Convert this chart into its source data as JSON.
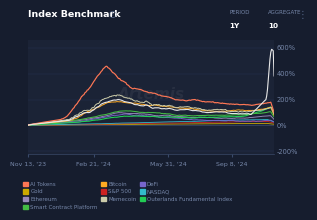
{
  "title": "Index Benchmark",
  "bg_color": "#161d2e",
  "plot_bg_color": "#1b2336",
  "grid_color": "#263050",
  "text_color": "#ffffff",
  "axis_label_color": "#7788aa",
  "x_ticks": [
    "Nov 13, '23",
    "Feb 21, '24",
    "May 31, '24",
    "Sep 8, '24"
  ],
  "y_lim": [
    -220,
    660
  ],
  "legend": [
    {
      "label": "AI Tokens",
      "color": "#ff7755"
    },
    {
      "label": "Gold",
      "color": "#ccaa00"
    },
    {
      "label": "Ethereum",
      "color": "#9988bb"
    },
    {
      "label": "Smart Contract Platform",
      "color": "#44bb44"
    },
    {
      "label": "Bitcoin",
      "color": "#ffaa22"
    },
    {
      "label": "S&P 500",
      "color": "#cc2222"
    },
    {
      "label": "Memecoin",
      "color": "#ccccaa"
    },
    {
      "label": "DeFi",
      "color": "#7766cc"
    },
    {
      "label": "NASDAQ",
      "color": "#33bbcc"
    },
    {
      "label": "Outerlands Fundamental Index",
      "color": "#22cc55"
    }
  ]
}
